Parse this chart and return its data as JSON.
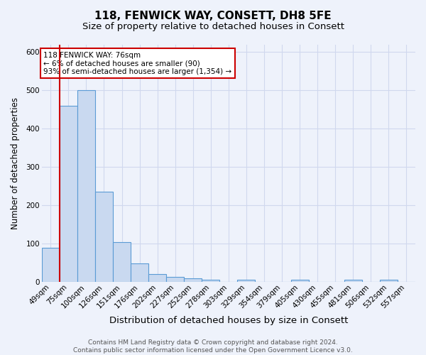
{
  "title1": "118, FENWICK WAY, CONSETT, DH8 5FE",
  "title2": "Size of property relative to detached houses in Consett",
  "xlabel": "Distribution of detached houses by size in Consett",
  "ylabel": "Number of detached properties",
  "categories": [
    "49sqm",
    "75sqm",
    "100sqm",
    "126sqm",
    "151sqm",
    "176sqm",
    "202sqm",
    "227sqm",
    "252sqm",
    "278sqm",
    "303sqm",
    "329sqm",
    "354sqm",
    "379sqm",
    "405sqm",
    "430sqm",
    "455sqm",
    "481sqm",
    "506sqm",
    "532sqm",
    "557sqm"
  ],
  "values": [
    88,
    460,
    500,
    235,
    103,
    47,
    19,
    13,
    8,
    5,
    0,
    5,
    0,
    0,
    4,
    0,
    0,
    4,
    0,
    4,
    0
  ],
  "bar_color": "#c9d9f0",
  "bar_edge_color": "#5b9bd5",
  "vline_x": 0.5,
  "vline_color": "#cc0000",
  "annotation_line1": "118 FENWICK WAY: 76sqm",
  "annotation_line2": "← 6% of detached houses are smaller (90)",
  "annotation_line3": "93% of semi-detached houses are larger (1,354) →",
  "annotation_box_color": "#ffffff",
  "annotation_box_edge": "#cc0000",
  "background_color": "#eef2fb",
  "grid_color": "#d0d8ee",
  "footer_text": "Contains HM Land Registry data © Crown copyright and database right 2024.\nContains public sector information licensed under the Open Government Licence v3.0.",
  "ylim": [
    0,
    620
  ],
  "title1_fontsize": 11,
  "title2_fontsize": 9.5,
  "xlabel_fontsize": 9.5,
  "ylabel_fontsize": 8.5,
  "tick_fontsize": 7.5,
  "footer_fontsize": 6.5
}
